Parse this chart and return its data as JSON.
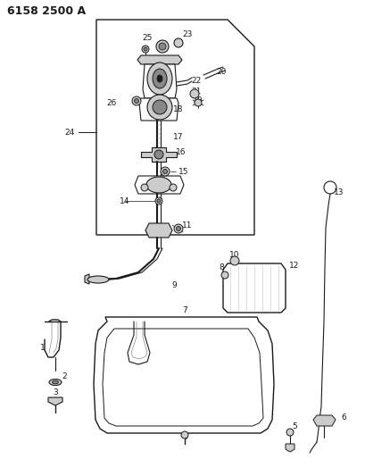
{
  "title": "6158 2500 A",
  "bg_color": "#ffffff",
  "lc": "#1a1a1a",
  "gray": "#888888",
  "lgray": "#cccccc",
  "fig_width": 4.1,
  "fig_height": 5.33,
  "dpi": 100,
  "fs": 6.5,
  "fs_title": 9.0
}
